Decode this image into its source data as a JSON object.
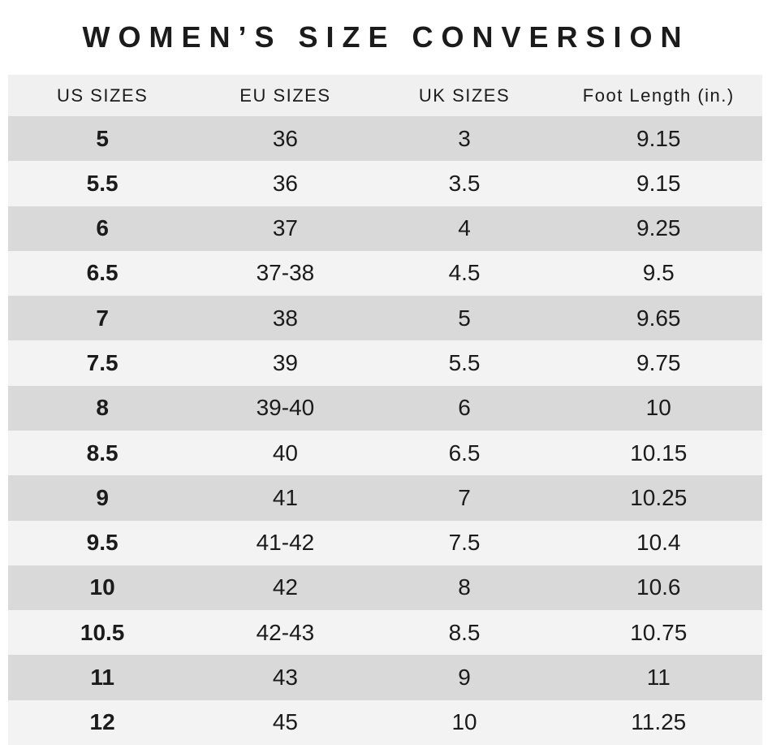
{
  "title": "WOMEN’S SIZE CONVERSION",
  "colors": {
    "page_bg": "#ffffff",
    "header_bg": "#f0f0f0",
    "row_dark": "#d9d9d9",
    "row_light": "#f3f3f3",
    "text": "#1b1b1b"
  },
  "chart_data": {
    "type": "table",
    "title": "WOMEN’S SIZE CONVERSION",
    "columns": [
      "US SIZES",
      "EU SIZES",
      "UK SIZES",
      "Foot Length (in.)"
    ],
    "rows": [
      [
        "5",
        "36",
        "3",
        "9.15"
      ],
      [
        "5.5",
        "36",
        "3.5",
        "9.15"
      ],
      [
        "6",
        "37",
        "4",
        "9.25"
      ],
      [
        "6.5",
        "37-38",
        "4.5",
        "9.5"
      ],
      [
        "7",
        "38",
        "5",
        "9.65"
      ],
      [
        "7.5",
        "39",
        "5.5",
        "9.75"
      ],
      [
        "8",
        "39-40",
        "6",
        "10"
      ],
      [
        "8.5",
        "40",
        "6.5",
        "10.15"
      ],
      [
        "9",
        "41",
        "7",
        "10.25"
      ],
      [
        "9.5",
        "41-42",
        "7.5",
        "10.4"
      ],
      [
        "10",
        "42",
        "8",
        "10.6"
      ],
      [
        "10.5",
        "42-43",
        "8.5",
        "10.75"
      ],
      [
        "11",
        "43",
        "9",
        "11"
      ],
      [
        "12",
        "45",
        "10",
        "11.25"
      ]
    ],
    "layout": {
      "striped": true,
      "first_data_row_shade": "dark",
      "us_column_bold": true
    }
  }
}
